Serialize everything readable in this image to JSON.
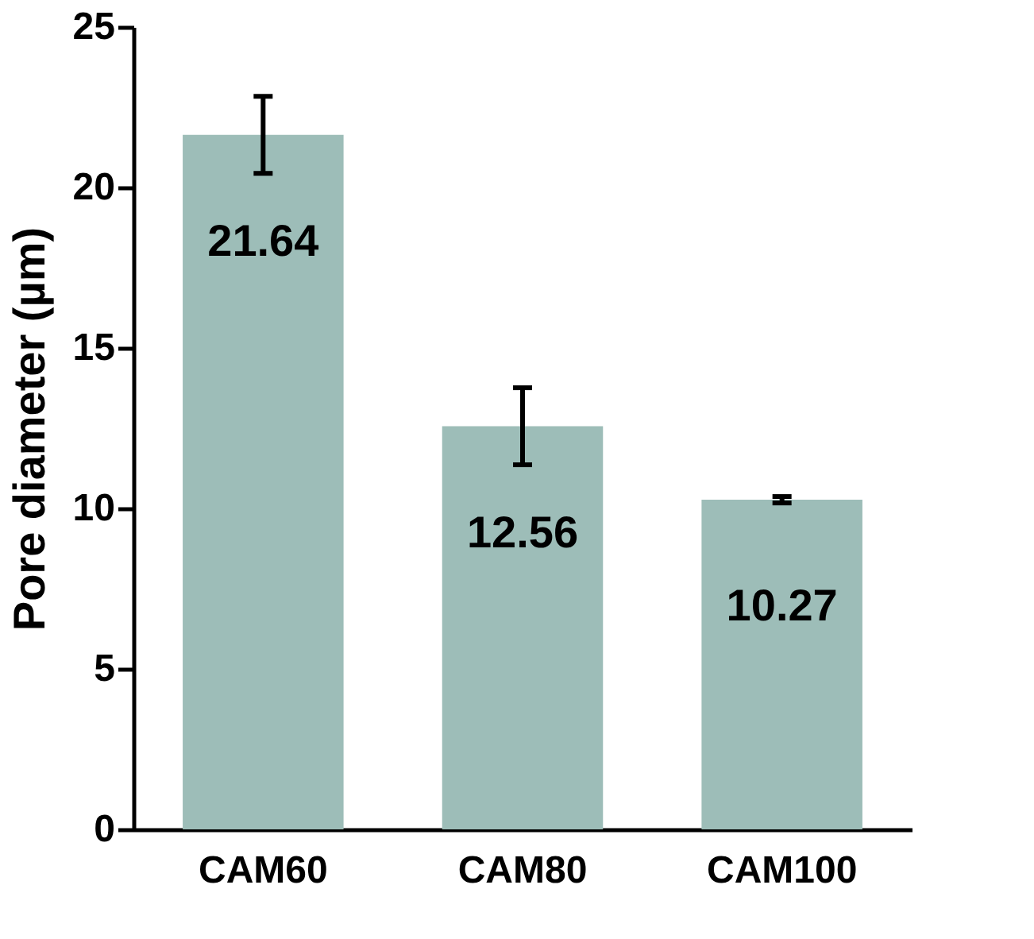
{
  "chart_data": {
    "type": "bar",
    "ylabel": "Pore diameter (µm)",
    "categories": [
      "CAM60",
      "CAM80",
      "CAM100"
    ],
    "values": [
      21.64,
      12.56,
      10.27
    ],
    "errors": [
      1.2,
      1.2,
      0.1
    ],
    "color": "#9dbdb8",
    "data_labels": true,
    "ylim": [
      0,
      25
    ],
    "yticks": [
      0,
      5,
      10,
      15,
      20,
      25
    ],
    "grid": false
  }
}
